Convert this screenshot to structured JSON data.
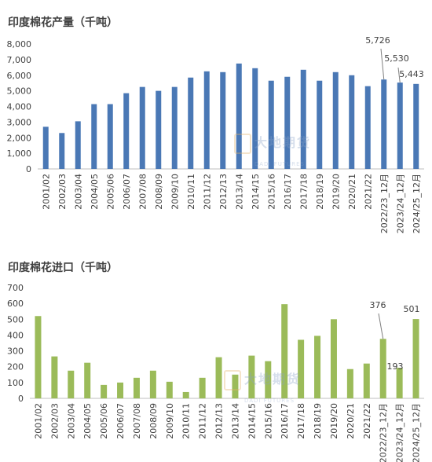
{
  "watermark": {
    "big": "大地期货",
    "small": "DADI FUTURES"
  },
  "chart_data": [
    {
      "type": "bar",
      "title": "印度棉花产量（千吨）",
      "color": "#4a78b5",
      "ylim": [
        0,
        8000
      ],
      "yticks": [
        0,
        1000,
        2000,
        3000,
        4000,
        5000,
        6000,
        7000,
        8000
      ],
      "ytick_labels": [
        "0",
        "1,000",
        "2,000",
        "3,000",
        "4,000",
        "5,000",
        "6,000",
        "7,000",
        "8,000"
      ],
      "grid": false,
      "categories": [
        "2001/02",
        "2002/03",
        "2003/04",
        "2004/05",
        "2005/06",
        "2006/07",
        "2007/08",
        "2008/09",
        "2009/10",
        "2010/11",
        "2011/12",
        "2012/13",
        "2013/14",
        "2014/15",
        "2015/16",
        "2016/17",
        "2017/18",
        "2018/19",
        "2019/20",
        "2020/21",
        "2021/22",
        "2022/23_12月",
        "2023/24_12月",
        "2024/25_12月"
      ],
      "values": [
        2700,
        2300,
        3050,
        4150,
        4150,
        4850,
        5250,
        5000,
        5250,
        5850,
        6250,
        6200,
        6750,
        6450,
        5650,
        5900,
        6350,
        5650,
        6200,
        6000,
        5300,
        5726,
        5530,
        5443
      ],
      "annotations": [
        {
          "index": 21,
          "label": "5,726"
        },
        {
          "index": 22,
          "label": "5,530"
        },
        {
          "index": 23,
          "label": "5,443"
        }
      ]
    },
    {
      "type": "bar",
      "title": "印度棉花进口（千吨）",
      "color": "#9bbb59",
      "ylim": [
        0,
        700
      ],
      "yticks": [
        0,
        100,
        200,
        300,
        400,
        500,
        600,
        700
      ],
      "ytick_labels": [
        "0",
        "100",
        "200",
        "300",
        "400",
        "500",
        "600",
        "700"
      ],
      "grid": false,
      "categories": [
        "2001/02",
        "2002/03",
        "2003/04",
        "2004/05",
        "2005/06",
        "2006/07",
        "2007/08",
        "2008/09",
        "2009/10",
        "2010/11",
        "2011/12",
        "2012/13",
        "2013/14",
        "2014/15",
        "2015/16",
        "2016/17",
        "2017/18",
        "2018/19",
        "2019/20",
        "2020/21",
        "2021/22",
        "2022/23_12月",
        "2023/24_12月",
        "2024/25_12月"
      ],
      "values": [
        520,
        265,
        175,
        225,
        85,
        100,
        130,
        175,
        105,
        40,
        130,
        260,
        150,
        270,
        235,
        595,
        370,
        395,
        500,
        185,
        220,
        376,
        193,
        501
      ],
      "annotations": [
        {
          "index": 21,
          "label": "376"
        },
        {
          "index": 22,
          "label": "193"
        },
        {
          "index": 23,
          "label": "501"
        }
      ]
    }
  ]
}
